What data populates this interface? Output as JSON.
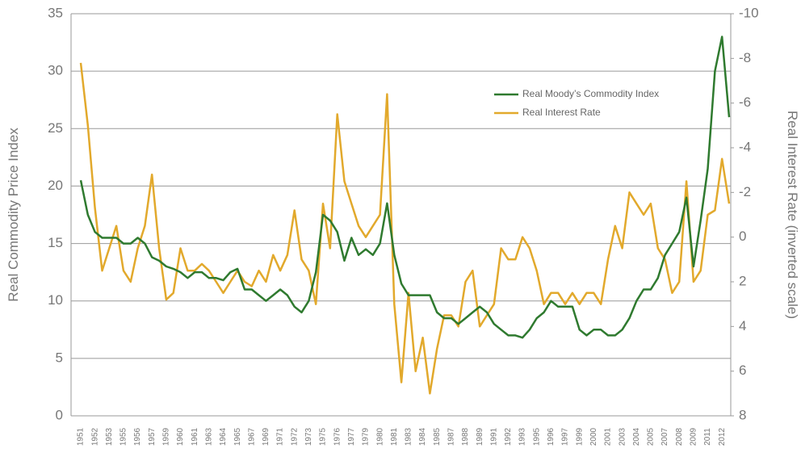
{
  "chart_data": {
    "type": "line",
    "y_label": "Real Commodity Price Index",
    "y2_label": "Real Interest Rate (inverted scale)",
    "categories": [
      "1951",
      null,
      "1952",
      null,
      "1953",
      null,
      "1955",
      null,
      "1956",
      null,
      "1957",
      null,
      "1959",
      null,
      "1960",
      null,
      "1961",
      null,
      "1963",
      null,
      "1964",
      null,
      "1965",
      null,
      "1967",
      null,
      "1969",
      null,
      "1971",
      null,
      "1972",
      null,
      "1973",
      null,
      "1975",
      null,
      "1976",
      null,
      "1977",
      null,
      "1979",
      null,
      "1980",
      null,
      "1981",
      null,
      "1983",
      null,
      "1984",
      null,
      "1985",
      null,
      "1987",
      null,
      "1988",
      null,
      "1989",
      null,
      "1991",
      null,
      "1992",
      null,
      "1993",
      null,
      "1995",
      null,
      "1996",
      null,
      "1997",
      null,
      "1999",
      null,
      "2000",
      null,
      "2001",
      null,
      "2003",
      null,
      "2004",
      null,
      "2005",
      null,
      "2007",
      null,
      "2008",
      null,
      "2009",
      null,
      "2011",
      null,
      "2012",
      null
    ],
    "series": [
      {
        "name": "Real Moody’s Commodity Index",
        "color": "#2f7a2f",
        "axis": "y",
        "values": [
          20.5,
          17.5,
          16,
          15.5,
          15.5,
          15.5,
          15,
          15,
          15.5,
          15,
          13.8,
          13.5,
          13,
          12.8,
          12.5,
          12,
          12.5,
          12.5,
          12,
          12,
          11.8,
          12.5,
          12.8,
          11,
          11,
          10.5,
          10,
          10.5,
          11,
          10.5,
          9.5,
          9,
          10,
          12.5,
          17.5,
          17,
          16,
          13.5,
          15.5,
          14,
          14.5,
          14,
          15,
          18.5,
          14,
          11.5,
          10.5,
          10.5,
          10.5,
          10.5,
          9,
          8.5,
          8.5,
          8,
          8.5,
          9,
          9.5,
          9,
          8,
          7.5,
          7,
          7,
          6.8,
          7.5,
          8.5,
          9,
          10,
          9.5,
          9.5,
          9.5,
          7.5,
          7,
          7.5,
          7.5,
          7,
          7,
          7.5,
          8.5,
          10,
          11,
          11,
          12,
          14,
          15,
          16,
          19,
          13,
          17,
          21.5,
          30,
          33,
          26
        ]
      },
      {
        "name": "Real Interest Rate",
        "color": "#e2a92c",
        "axis": "y2",
        "values": [
          -7.8,
          -5,
          -1.3,
          1.5,
          0.5,
          -0.5,
          1.5,
          2,
          0.5,
          -0.5,
          -2.8,
          0.5,
          2.8,
          2.5,
          0.5,
          1.5,
          1.5,
          1.2,
          1.5,
          2,
          2.5,
          2,
          1.5,
          2,
          2.2,
          1.5,
          2,
          0.8,
          1.5,
          0.8,
          -1.2,
          1,
          1.5,
          3,
          -1.5,
          0.5,
          -5.5,
          -2.5,
          -1.5,
          -0.5,
          0,
          -0.5,
          -1,
          -6.4,
          3,
          6.5,
          2.5,
          6,
          4.5,
          7,
          5,
          3.5,
          3.5,
          4,
          2,
          1.5,
          4,
          3.5,
          3,
          0.5,
          1,
          1,
          0,
          0.5,
          1.5,
          3,
          2.5,
          2.5,
          3,
          2.5,
          3,
          2.5,
          2.5,
          3,
          1,
          -0.5,
          0.5,
          -2,
          -1.5,
          -1,
          -1.5,
          0.5,
          1,
          2.5,
          2,
          -2.5,
          2,
          1.5,
          -1,
          -1.2,
          -3.5,
          -1.5
        ]
      }
    ],
    "ylim": [
      0,
      35
    ],
    "yticks": [
      0,
      5,
      10,
      15,
      20,
      25,
      30,
      35
    ],
    "y2lim": [
      -10,
      8
    ],
    "y2ticks": [
      -10,
      -8,
      -6,
      -4,
      -2,
      0,
      2,
      4,
      6,
      8
    ],
    "y2_inverted": true,
    "grid": true,
    "legend": "upper right"
  }
}
